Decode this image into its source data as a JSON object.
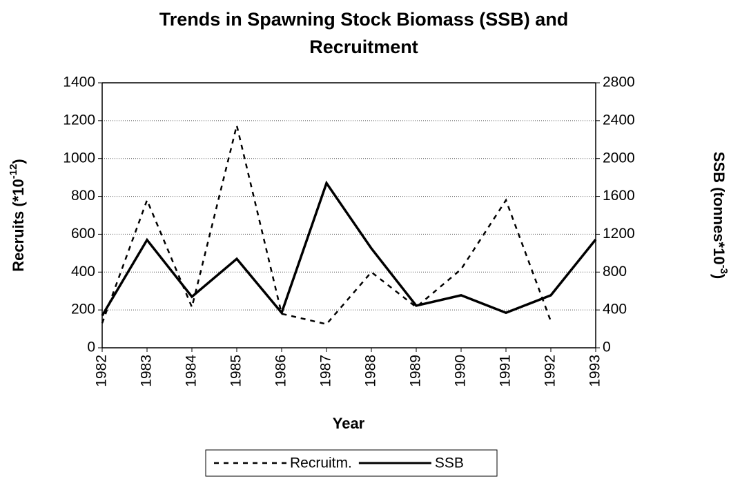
{
  "chart_data": {
    "type": "line",
    "title": [
      "Trends in Spawning Stock Biomass (SSB) and",
      "Recruitment"
    ],
    "x_label": "Year",
    "y_label": [
      "Recruits (*10",
      "-12",
      ")"
    ],
    "y2_label": [
      "SSB (tonnes*10",
      "-3",
      ")"
    ],
    "categories": [
      "1982",
      "1983",
      "1984",
      "1985",
      "1986",
      "1987",
      "1988",
      "1989",
      "1990",
      "1991",
      "1992",
      "1993"
    ],
    "series": [
      {
        "name": "Recruitm.",
        "color": "#000000",
        "dash": true,
        "axis": "y",
        "values": [
          130,
          780,
          215,
          1175,
          180,
          125,
          400,
          215,
          415,
          780,
          140,
          null
        ]
      },
      {
        "name": "SSB",
        "color": "#000000",
        "dash": false,
        "axis": "y2",
        "values": [
          340,
          1140,
          540,
          940,
          370,
          1740,
          1050,
          445,
          555,
          370,
          555,
          1145
        ]
      }
    ],
    "ylim": [
      0,
      1400
    ],
    "yticks": [
      0,
      200,
      400,
      600,
      800,
      1000,
      1200,
      1400
    ],
    "y2lim": [
      0,
      2800
    ],
    "y2ticks": [
      0,
      400,
      800,
      1200,
      1600,
      2000,
      2400,
      2800
    ],
    "grid": true,
    "legend": "bottom"
  }
}
